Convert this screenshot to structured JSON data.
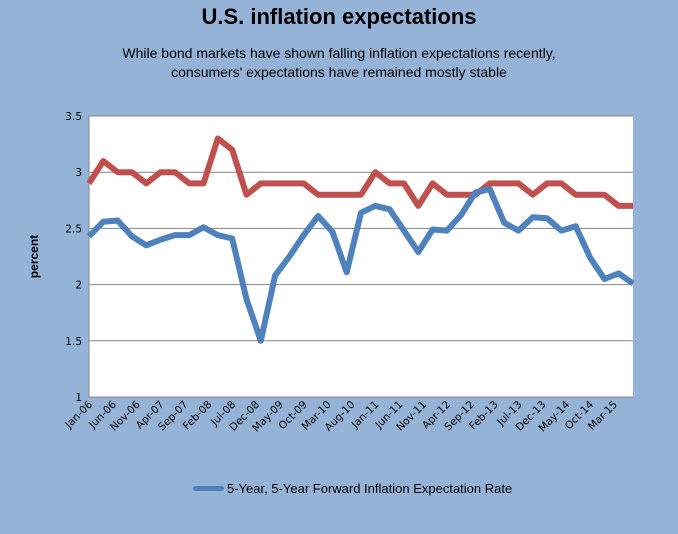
{
  "title": "U.S. inflation expectations",
  "subtitle_line1": "While bond markets have shown falling inflation expectations recently,",
  "subtitle_line2": "consumers' expectations have remained mostly stable",
  "colors": {
    "background": "#95b3d7",
    "plot_background": "#ffffff",
    "gridline": "#868686",
    "series_blue": "#4f81bd",
    "series_red": "#c0504d"
  },
  "chart_data": {
    "type": "line",
    "title": "U.S. inflation expectations",
    "subtitle": "While bond markets have shown falling inflation expectations recently, consumers' expectations have remained mostly stable",
    "xlabel": "",
    "ylabel": "percent",
    "ylim": [
      1,
      3.5
    ],
    "yticks": [
      1,
      1.5,
      2,
      2.5,
      3,
      3.5
    ],
    "ytick_labels": [
      "1",
      "1.5",
      "2",
      "2.5",
      "3",
      "3.5"
    ],
    "x_unit": "months since Jan-06",
    "x_range": [
      0,
      114
    ],
    "x": [
      0,
      3,
      6,
      9,
      12,
      15,
      18,
      21,
      24,
      27,
      30,
      33,
      36,
      39,
      42,
      45,
      48,
      51,
      54,
      57,
      60,
      63,
      66,
      69,
      72,
      75,
      78,
      81,
      84,
      87,
      90,
      93,
      96,
      99,
      102,
      105,
      108,
      111,
      114
    ],
    "xtick_positions": [
      0,
      5,
      10,
      15,
      20,
      25,
      30,
      35,
      40,
      45,
      50,
      55,
      60,
      65,
      70,
      75,
      80,
      85,
      90,
      95,
      100,
      105,
      110
    ],
    "xtick_labels": [
      "Jan-06",
      "Jun-06",
      "Nov-06",
      "Apr-07",
      "Sep-07",
      "Feb-08",
      "Jul-08",
      "Dec-08",
      "May-09",
      "Oct-09",
      "Mar-10",
      "Aug-10",
      "Jan-11",
      "Jun-11",
      "Nov-11",
      "Apr-12",
      "Sep-12",
      "Feb-13",
      "Jul-13",
      "Dec-13",
      "May-14",
      "Oct-14",
      "Mar-15"
    ],
    "grid": true,
    "legend_position": "bottom",
    "series": [
      {
        "name": "5-Year, 5-Year Forward Inflation Expectation Rate",
        "color": "#4f81bd",
        "in_legend": true,
        "values": [
          2.43,
          2.56,
          2.57,
          2.43,
          2.35,
          2.4,
          2.44,
          2.44,
          2.51,
          2.44,
          2.41,
          1.87,
          1.5,
          2.08,
          2.25,
          2.44,
          2.61,
          2.47,
          2.11,
          2.64,
          2.7,
          2.67,
          2.48,
          2.29,
          2.49,
          2.48,
          2.62,
          2.82,
          2.85,
          2.55,
          2.48,
          2.6,
          2.59,
          2.48,
          2.52,
          2.24,
          2.05,
          2.1,
          2.01
        ]
      },
      {
        "name": "",
        "color": "#c0504d",
        "in_legend": false,
        "values": [
          2.9,
          3.1,
          3.0,
          3.0,
          2.9,
          3.0,
          3.0,
          2.9,
          2.9,
          3.3,
          3.2,
          2.8,
          2.9,
          2.9,
          2.9,
          2.9,
          2.8,
          2.8,
          2.8,
          2.8,
          3.0,
          2.9,
          2.9,
          2.7,
          2.9,
          2.8,
          2.8,
          2.8,
          2.9,
          2.9,
          2.9,
          2.8,
          2.9,
          2.9,
          2.8,
          2.8,
          2.8,
          2.7,
          2.7
        ]
      }
    ]
  }
}
